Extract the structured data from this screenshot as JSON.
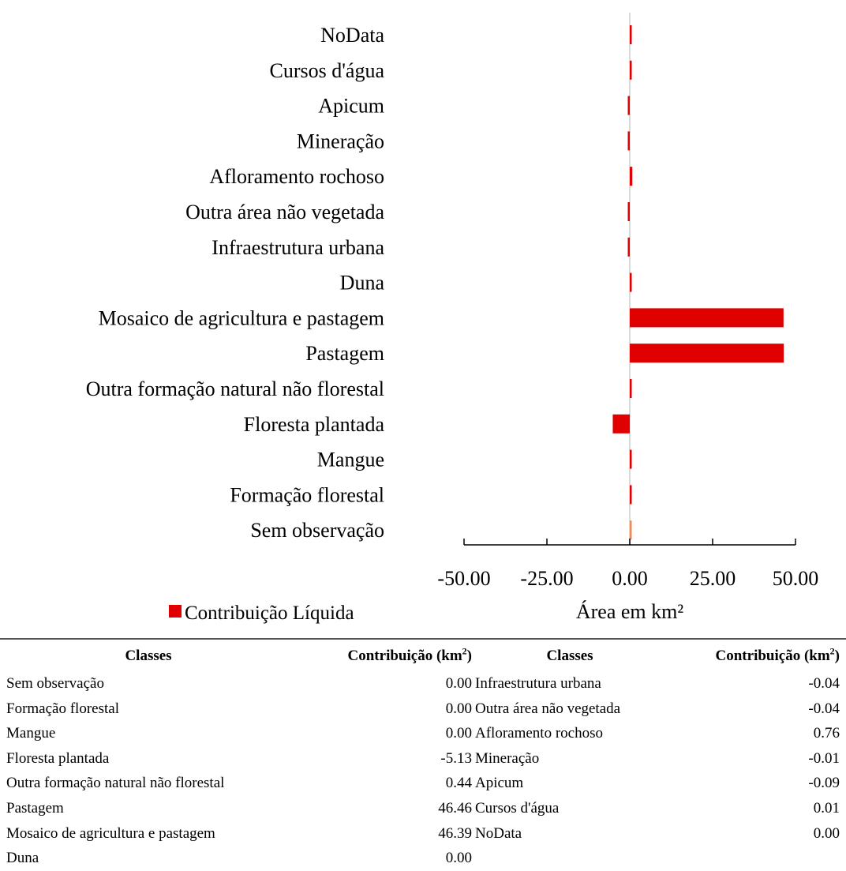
{
  "chart_data": {
    "type": "bar",
    "orientation": "horizontal",
    "categories": [
      "NoData",
      "Cursos d'água",
      "Apicum",
      "Mineração",
      "Afloramento rochoso",
      "Outra área não vegetada",
      "Infraestrutura urbana",
      "Duna",
      "Mosaico de agricultura e pastagem",
      "Pastagem",
      "Outra formação natural não florestal",
      "Floresta plantada",
      "Mangue",
      "Formação florestal",
      "Sem observação"
    ],
    "values": [
      0.0,
      0.01,
      -0.09,
      -0.01,
      0.76,
      -0.04,
      -0.04,
      0.0,
      46.39,
      46.46,
      0.44,
      -5.13,
      0.0,
      0.0,
      0.0
    ],
    "bar_colors": [
      "#e00000",
      "#e00000",
      "#e00000",
      "#e00000",
      "#e00000",
      "#e00000",
      "#e00000",
      "#e00000",
      "#e00000",
      "#e00000",
      "#e00000",
      "#e00000",
      "#e00000",
      "#e00000",
      "#f08a5d"
    ],
    "xlabel": "Área em km²",
    "ylabel": "",
    "xlim": [
      -50,
      50
    ],
    "xticks": [
      "-50.00",
      "-25.00",
      "0.00",
      "25.00",
      "50.00"
    ],
    "legend": {
      "label": "Contribuição Líquida",
      "color": "#e00000",
      "position": "bottom-left"
    },
    "grid": false
  },
  "table": {
    "headers": {
      "classes_1": "Classes",
      "contrib_1": "Contribuição (km",
      "classes_2": "Classes",
      "contrib_2": "Contribuição  (km",
      "unit_sup": "2",
      "close": ")"
    },
    "rows": [
      {
        "name1": "Sem observação",
        "val1": "0.00",
        "name2": "Infraestrutura urbana",
        "val2": "-0.04"
      },
      {
        "name1": "Formação florestal",
        "val1": "0.00",
        "name2": "Outra área não vegetada",
        "val2": "-0.04"
      },
      {
        "name1": "Mangue",
        "val1": "0.00",
        "name2": "Afloramento rochoso",
        "val2": "0.76"
      },
      {
        "name1": "Floresta plantada",
        "val1": "-5.13",
        "name2": "Mineração",
        "val2": "-0.01"
      },
      {
        "name1": "Outra formação natural não florestal",
        "val1": "0.44",
        "name2": "Apicum",
        "val2": "-0.09"
      },
      {
        "name1": "Pastagem",
        "val1": "46.46",
        "name2": "Cursos d'água",
        "val2": "0.01"
      },
      {
        "name1": "Mosaico de agricultura e pastagem",
        "val1": "46.39",
        "name2": "NoData",
        "val2": "0.00"
      },
      {
        "name1": "Duna",
        "val1": "0.00",
        "name2": "",
        "val2": ""
      }
    ]
  }
}
